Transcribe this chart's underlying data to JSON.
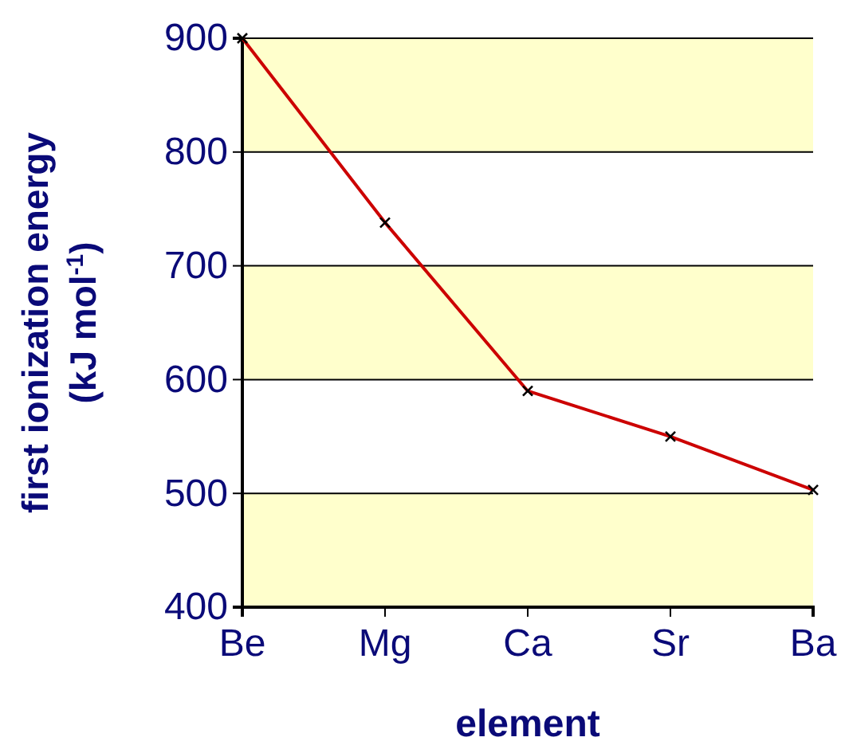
{
  "chart_data": {
    "type": "line",
    "xlabel": "element",
    "ylabel": "first ionization energy\n(kJ mol$^{-1}$)",
    "categories": [
      "Be",
      "Mg",
      "Ca",
      "Sr",
      "Ba"
    ],
    "series": [
      {
        "color": "#cc0000",
        "values": [
          900,
          738,
          590,
          550,
          503
        ]
      }
    ],
    "ylim": [
      400,
      900
    ],
    "yticks": [
      400,
      500,
      600,
      700,
      800,
      900
    ],
    "bands": [
      {
        "axis": "y",
        "from": 400,
        "to": 500,
        "color": "#ffffcc"
      },
      {
        "axis": "y",
        "from": 600,
        "to": 700,
        "color": "#ffffcc"
      },
      {
        "axis": "y",
        "from": 800,
        "to": 900,
        "color": "#ffffcc"
      }
    ],
    "grid": "y",
    "marker": "cross",
    "line_style": "solid"
  }
}
